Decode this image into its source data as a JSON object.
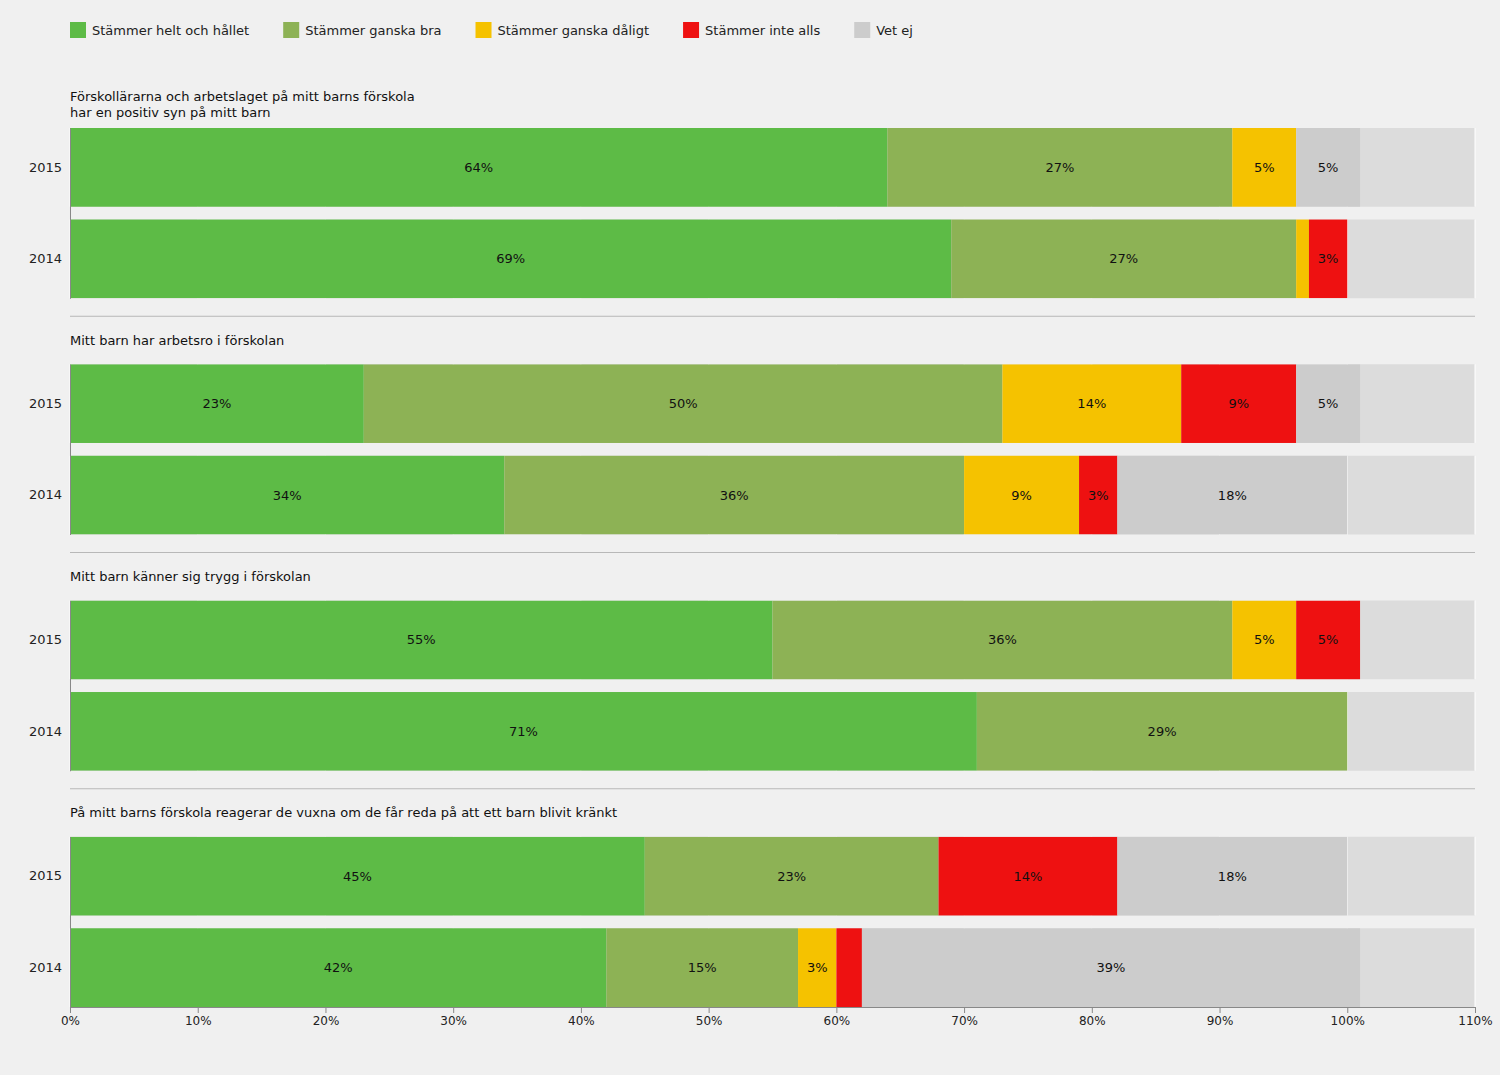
{
  "chart_data": [
    {
      "type": "bar",
      "orientation": "horizontal",
      "stacked": true,
      "data_labels": true,
      "grid": true,
      "legend": "top",
      "tick_labels": "y",
      "title": "Förskollärarna och arbetslaget på mitt barns förskola\nhar en positiv syn på mitt barn",
      "categories": [
        "2015",
        "2014"
      ],
      "series": [
        {
          "name": "Stämmer helt och hållet",
          "color": "#5DBB46",
          "values": [
            64,
            69
          ],
          "value_labels": [
            "64%",
            "69%"
          ]
        },
        {
          "name": "Stämmer ganska bra",
          "color": "#8DB255",
          "values": [
            27,
            27
          ],
          "value_labels": [
            "27%",
            "27%"
          ]
        },
        {
          "name": "Stämmer ganska dåligt",
          "color": "#F5C200",
          "values": [
            5,
            1
          ],
          "value_labels": [
            "5%",
            null
          ]
        },
        {
          "name": "Stämmer inte alls",
          "color": "#EE1111",
          "values": [
            0,
            3
          ],
          "value_labels": [
            null,
            "3%"
          ]
        },
        {
          "name": "Vet ej",
          "color": "#CCCCCC",
          "values": [
            5,
            0
          ],
          "value_labels": [
            "5%",
            null
          ]
        }
      ],
      "xlim": [
        0,
        110
      ],
      "xticks": [
        {
          "value": 0,
          "label": "0%"
        },
        {
          "value": 10,
          "label": "10%"
        },
        {
          "value": 20,
          "label": "20%"
        },
        {
          "value": 30,
          "label": "30%"
        },
        {
          "value": 40,
          "label": "40%"
        },
        {
          "value": 50,
          "label": "50%"
        },
        {
          "value": 60,
          "label": "60%"
        },
        {
          "value": 70,
          "label": "70%"
        },
        {
          "value": 80,
          "label": "80%"
        },
        {
          "value": 90,
          "label": "90%"
        },
        {
          "value": 100,
          "label": "100%"
        },
        {
          "value": 110,
          "label": "110%"
        }
      ]
    },
    {
      "type": "bar",
      "orientation": "horizontal",
      "stacked": true,
      "data_labels": true,
      "grid": true,
      "tick_labels": "y",
      "title": "Mitt barn har arbetsro i förskolan",
      "categories": [
        "2015",
        "2014"
      ],
      "series": [
        {
          "name": "Stämmer helt och hållet",
          "color": "#5DBB46",
          "values": [
            23,
            34
          ],
          "value_labels": [
            "23%",
            "34%"
          ]
        },
        {
          "name": "Stämmer ganska bra",
          "color": "#8DB255",
          "values": [
            50,
            36
          ],
          "value_labels": [
            "50%",
            "36%"
          ]
        },
        {
          "name": "Stämmer ganska dåligt",
          "color": "#F5C200",
          "values": [
            14,
            9
          ],
          "value_labels": [
            "14%",
            "9%"
          ]
        },
        {
          "name": "Stämmer inte alls",
          "color": "#EE1111",
          "values": [
            9,
            3
          ],
          "value_labels": [
            "9%",
            "3%"
          ]
        },
        {
          "name": "Vet ej",
          "color": "#CCCCCC",
          "values": [
            5,
            18
          ],
          "value_labels": [
            "5%",
            "18%"
          ]
        }
      ],
      "xlim": [
        0,
        110
      ],
      "xticks": [
        {
          "value": 0,
          "label": "0%"
        },
        {
          "value": 10,
          "label": "10%"
        },
        {
          "value": 20,
          "label": "20%"
        },
        {
          "value": 30,
          "label": "30%"
        },
        {
          "value": 40,
          "label": "40%"
        },
        {
          "value": 50,
          "label": "50%"
        },
        {
          "value": 60,
          "label": "60%"
        },
        {
          "value": 70,
          "label": "70%"
        },
        {
          "value": 80,
          "label": "80%"
        },
        {
          "value": 90,
          "label": "90%"
        },
        {
          "value": 100,
          "label": "100%"
        },
        {
          "value": 110,
          "label": "110%"
        }
      ]
    },
    {
      "type": "bar",
      "orientation": "horizontal",
      "stacked": true,
      "data_labels": true,
      "grid": true,
      "tick_labels": "y",
      "title": "Mitt barn känner sig trygg i förskolan",
      "categories": [
        "2015",
        "2014"
      ],
      "series": [
        {
          "name": "Stämmer helt och hållet",
          "color": "#5DBB46",
          "values": [
            55,
            71
          ],
          "value_labels": [
            "55%",
            "71%"
          ]
        },
        {
          "name": "Stämmer ganska bra",
          "color": "#8DB255",
          "values": [
            36,
            29
          ],
          "value_labels": [
            "36%",
            "29%"
          ]
        },
        {
          "name": "Stämmer ganska dåligt",
          "color": "#F5C200",
          "values": [
            5,
            0
          ],
          "value_labels": [
            "5%",
            null
          ]
        },
        {
          "name": "Stämmer inte alls",
          "color": "#EE1111",
          "values": [
            5,
            0
          ],
          "value_labels": [
            "5%",
            null
          ]
        },
        {
          "name": "Vet ej",
          "color": "#CCCCCC",
          "values": [
            0,
            0
          ],
          "value_labels": [
            null,
            null
          ]
        }
      ],
      "xlim": [
        0,
        110
      ],
      "xticks": [
        {
          "value": 0,
          "label": "0%"
        },
        {
          "value": 10,
          "label": "10%"
        },
        {
          "value": 20,
          "label": "20%"
        },
        {
          "value": 30,
          "label": "30%"
        },
        {
          "value": 40,
          "label": "40%"
        },
        {
          "value": 50,
          "label": "50%"
        },
        {
          "value": 60,
          "label": "60%"
        },
        {
          "value": 70,
          "label": "70%"
        },
        {
          "value": 80,
          "label": "80%"
        },
        {
          "value": 90,
          "label": "90%"
        },
        {
          "value": 100,
          "label": "100%"
        },
        {
          "value": 110,
          "label": "110%"
        }
      ]
    },
    {
      "type": "bar",
      "orientation": "horizontal",
      "stacked": true,
      "data_labels": true,
      "grid": true,
      "title": "På mitt barns förskola reagerar de vuxna om de får reda på att ett barn blivit kränkt",
      "categories": [
        "2015",
        "2014"
      ],
      "series": [
        {
          "name": "Stämmer helt och hållet",
          "color": "#5DBB46",
          "values": [
            45,
            42
          ],
          "value_labels": [
            "45%",
            "42%"
          ]
        },
        {
          "name": "Stämmer ganska bra",
          "color": "#8DB255",
          "values": [
            23,
            15
          ],
          "value_labels": [
            "23%",
            "15%"
          ]
        },
        {
          "name": "Stämmer ganska dåligt",
          "color": "#F5C200",
          "values": [
            0,
            3
          ],
          "value_labels": [
            null,
            "3%"
          ]
        },
        {
          "name": "Stämmer inte alls",
          "color": "#EE1111",
          "values": [
            14,
            2
          ],
          "value_labels": [
            "14%",
            null
          ]
        },
        {
          "name": "Vet ej",
          "color": "#CCCCCC",
          "values": [
            18,
            39
          ],
          "value_labels": [
            "18%",
            "39%"
          ]
        }
      ],
      "xlim": [
        0,
        110
      ],
      "xticks": [
        {
          "value": 0,
          "label": "0%"
        },
        {
          "value": 10,
          "label": "10%"
        },
        {
          "value": 20,
          "label": "20%"
        },
        {
          "value": 30,
          "label": "30%"
        },
        {
          "value": 40,
          "label": "40%"
        },
        {
          "value": 50,
          "label": "50%"
        },
        {
          "value": 60,
          "label": "60%"
        },
        {
          "value": 70,
          "label": "70%"
        },
        {
          "value": 80,
          "label": "80%"
        },
        {
          "value": 90,
          "label": "90%"
        },
        {
          "value": 100,
          "label": "100%"
        },
        {
          "value": 110,
          "label": "110%"
        }
      ]
    }
  ]
}
